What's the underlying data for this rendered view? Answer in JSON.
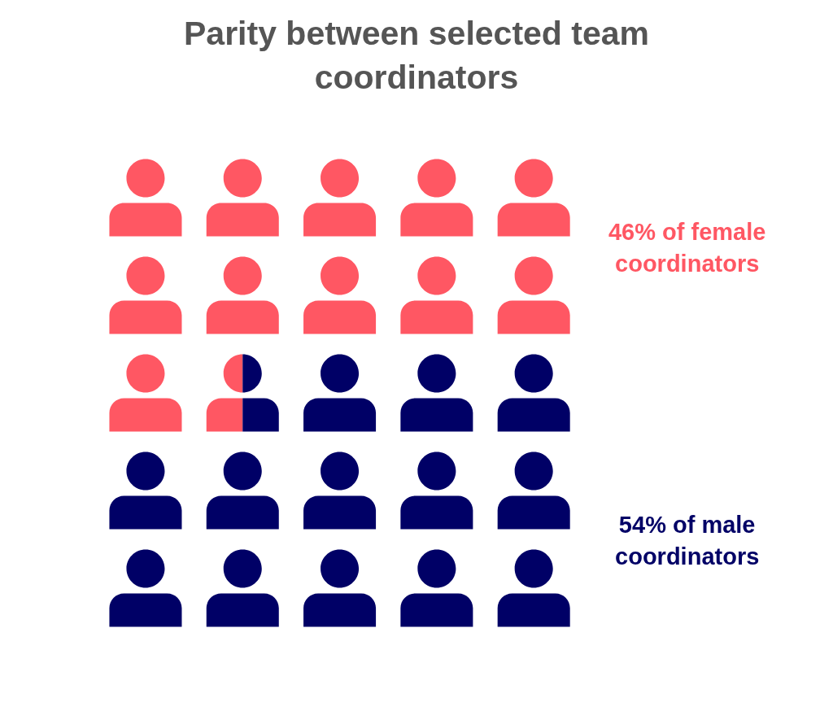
{
  "chart_data": {
    "type": "other",
    "title": "Parity between selected team coordinators",
    "categories": [
      null,
      null
    ],
    "values": [
      46,
      54
    ],
    "colors": [
      "#ff5763",
      "#000066"
    ],
    "value_labels": [
      "46% of female coordinators",
      "54% of male coordinators"
    ]
  }
}
